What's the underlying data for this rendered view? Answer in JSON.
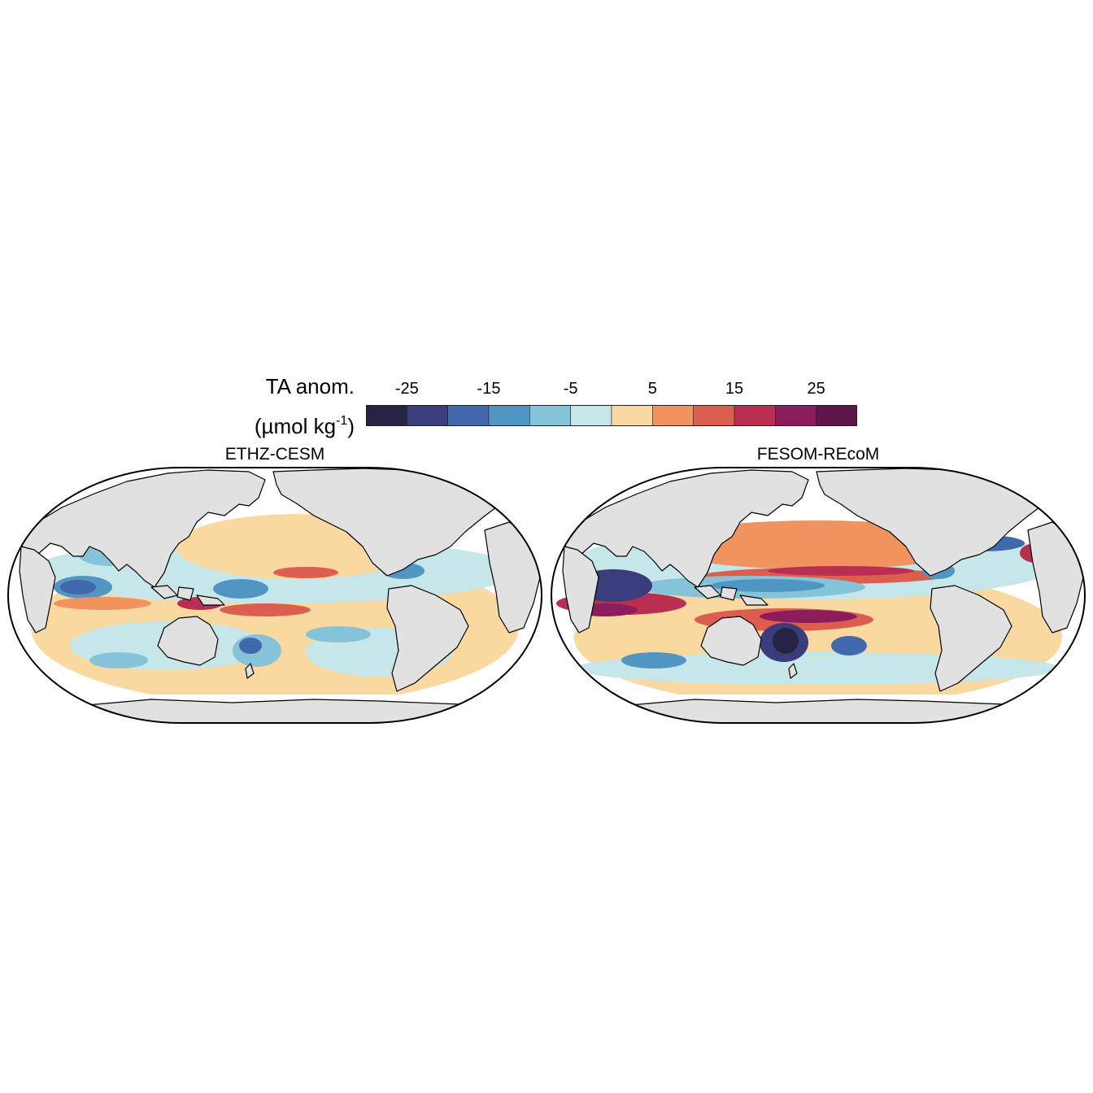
{
  "legend": {
    "title_line1": "TA anom.",
    "title_line2_base": "(µmol kg",
    "title_line2_sup": "-1",
    "title_line2_close": ")",
    "ticks": [
      "-25",
      "-15",
      "-5",
      "5",
      "15",
      "25"
    ],
    "bins": [
      "#262344",
      "#3b3c7c",
      "#4268ae",
      "#5096c3",
      "#85c3d8",
      "#c6e7ea",
      "#fad9a0",
      "#f0935f",
      "#dc5e50",
      "#b92f52",
      "#8b1d5c",
      "#5c1648"
    ]
  },
  "panels": [
    {
      "title": "ETHZ-CESM"
    },
    {
      "title": "FESOM-REcoM"
    }
  ],
  "colors": {
    "land": "#e1e1e1",
    "coast": "#000000",
    "nodata": "#ffffff"
  }
}
